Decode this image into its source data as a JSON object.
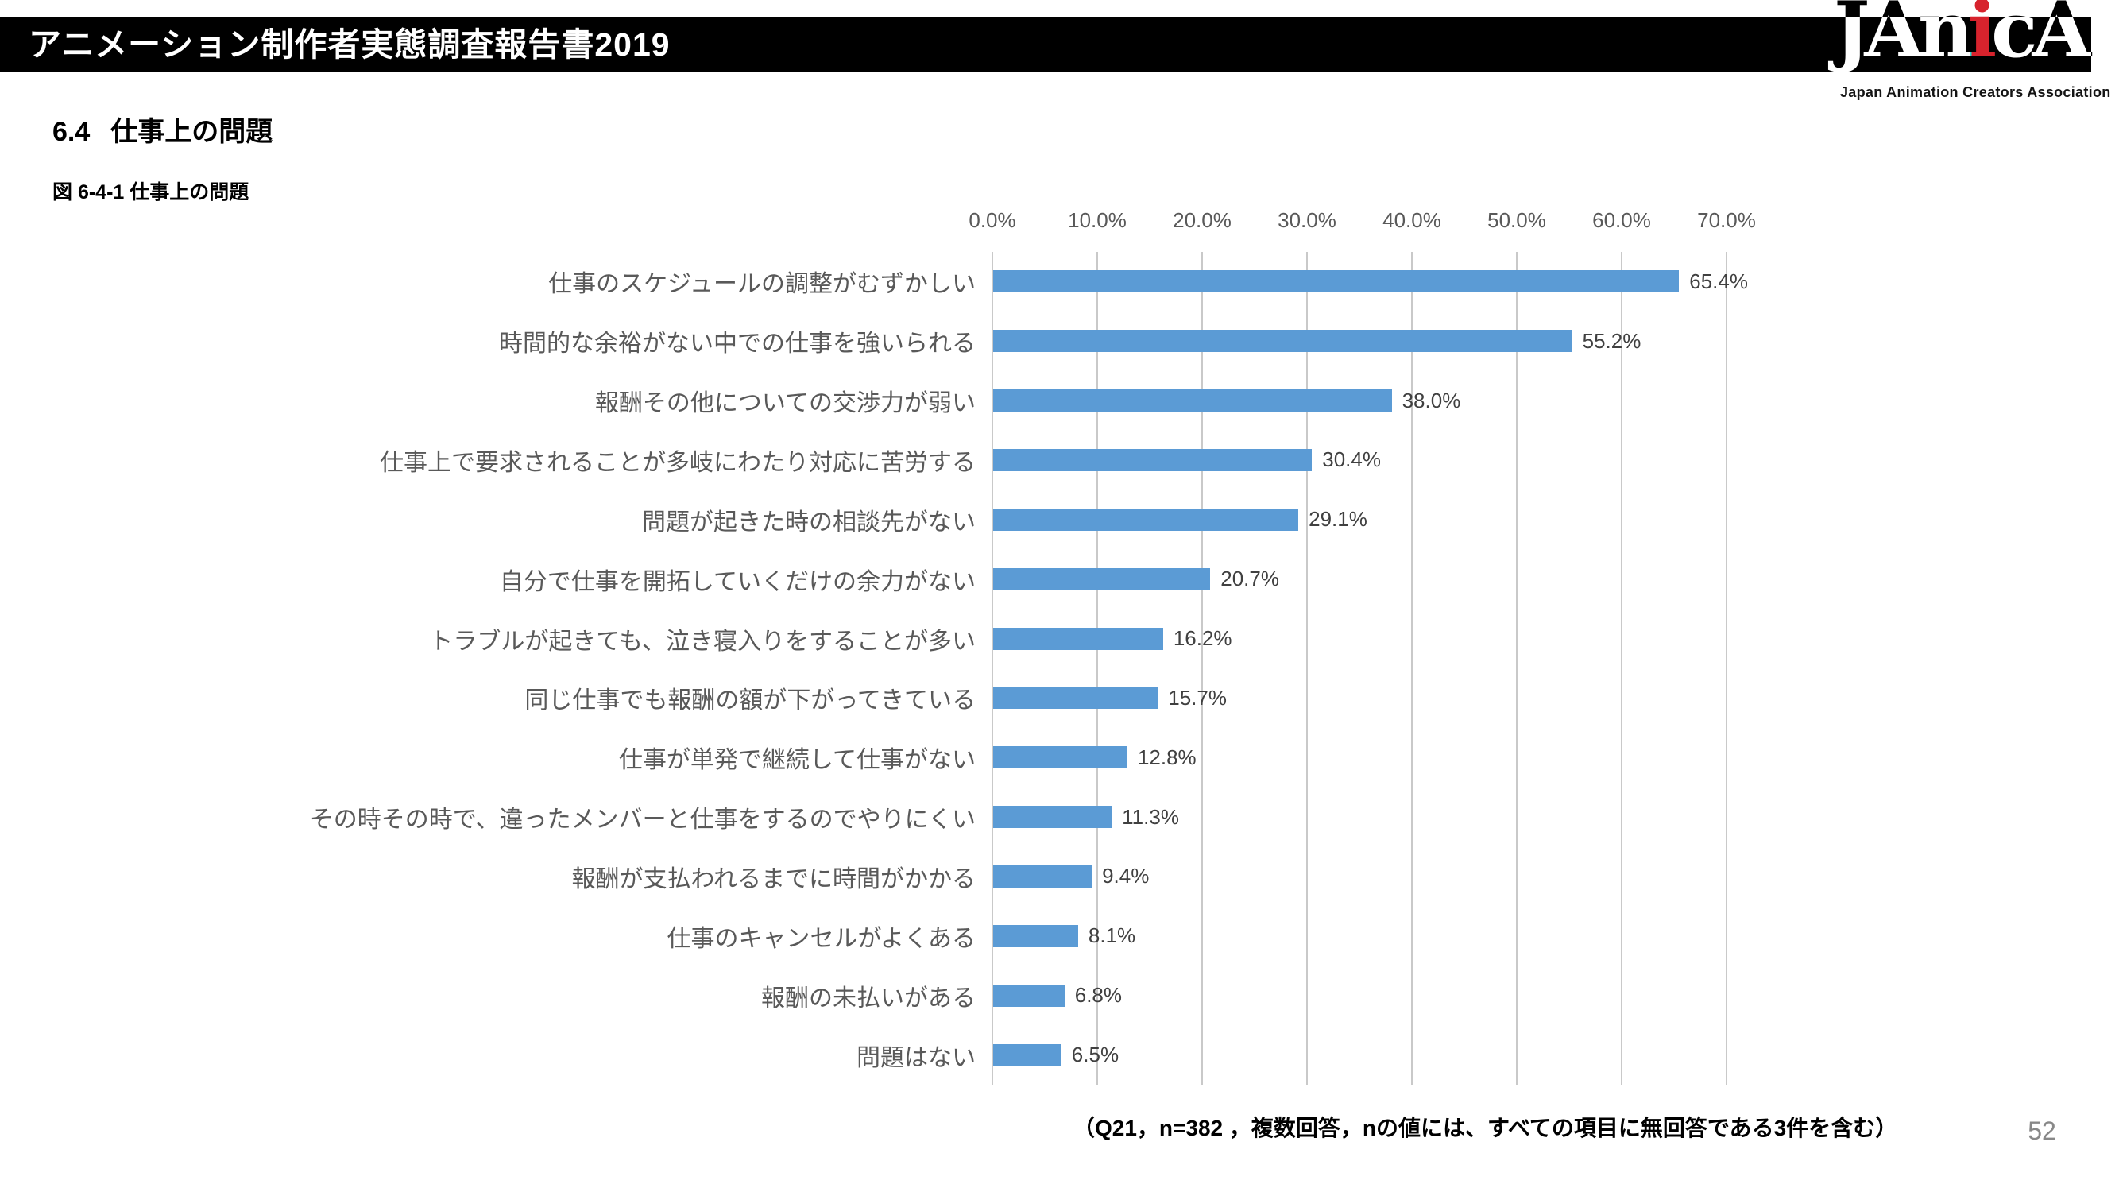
{
  "header": {
    "title": "アニメーション制作者実態調査報告書2019"
  },
  "logo": {
    "part1": "JAn",
    "part_red": "i",
    "part2": "cA",
    "tagline": "Japan Animation Creators Association",
    "red_color": "#d7232d"
  },
  "section": {
    "number": "6.4",
    "title": "仕事上の問題"
  },
  "figure": {
    "caption": "図 6-4-1 仕事上の問題"
  },
  "chart_data": {
    "type": "bar",
    "orientation": "horizontal",
    "title": "仕事上の問題",
    "categories": [
      "仕事のスケジュールの調整がむずかしい",
      "時間的な余裕がない中での仕事を強いられる",
      "報酬その他についての交渉力が弱い",
      "仕事上で要求されることが多岐にわたり対応に苦労する",
      "問題が起きた時の相談先がない",
      "自分で仕事を開拓していくだけの余力がない",
      "トラブルが起きても、泣き寝入りをすることが多い",
      "同じ仕事でも報酬の額が下がってきている",
      "仕事が単発で継続して仕事がない",
      "その時その時で、違ったメンバーと仕事をするのでやりにくい",
      "報酬が支払われるまでに時間がかかる",
      "仕事のキャンセルがよくある",
      "報酬の未払いがある",
      "問題はない"
    ],
    "values": [
      65.4,
      55.2,
      38.0,
      30.4,
      29.1,
      20.7,
      16.2,
      15.7,
      12.8,
      11.3,
      9.4,
      8.1,
      6.8,
      6.5
    ],
    "value_labels": [
      "65.4%",
      "55.2%",
      "38.0%",
      "30.4%",
      "29.1%",
      "20.7%",
      "16.2%",
      "15.7%",
      "12.8%",
      "11.3%",
      "9.4%",
      "8.1%",
      "6.8%",
      "6.5%"
    ],
    "x_ticks": [
      "0.0%",
      "10.0%",
      "20.0%",
      "30.0%",
      "40.0%",
      "50.0%",
      "60.0%",
      "70.0%"
    ],
    "xlim": [
      0,
      70
    ],
    "grid": true,
    "legend": false,
    "bar_color": "#5B9BD5",
    "gridline_color": "#C9C9C9"
  },
  "footnote": "（Q21，n=382 ，複数回答，nの値には、すべての項目に無回答である3件を含む）",
  "page_number": "52"
}
